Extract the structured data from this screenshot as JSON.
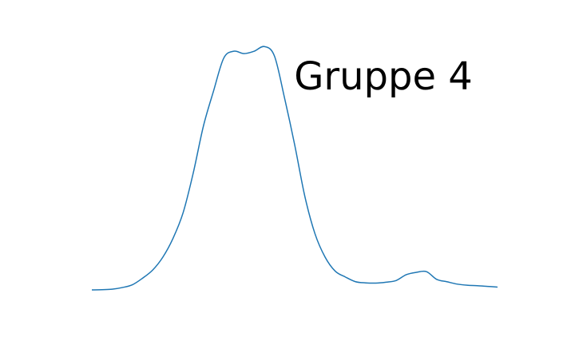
{
  "chart_data": {
    "type": "line",
    "title": "Gruppe 4",
    "xlabel": "",
    "ylabel": "",
    "grid": false,
    "axes_visible": false,
    "xlim": [
      0,
      100
    ],
    "ylim": [
      0,
      1
    ],
    "series": [
      {
        "color": "#1f77b4",
        "x": [
          0,
          2.5,
          5,
          7.5,
          10,
          12.5,
          15,
          17.5,
          20,
          22.5,
          25,
          27.5,
          30,
          32.5,
          35,
          37.5,
          40,
          42.5,
          45,
          47.5,
          50,
          52.5,
          55,
          57.5,
          60,
          62.5,
          65,
          67.5,
          70,
          72.5,
          75,
          77.5,
          80,
          82.5,
          85,
          87.5,
          90,
          92.5,
          95,
          97.5,
          100
        ],
        "y": [
          0.0,
          0.001,
          0.003,
          0.01,
          0.022,
          0.05,
          0.085,
          0.14,
          0.22,
          0.33,
          0.5,
          0.7,
          0.85,
          0.99,
          1.02,
          1.01,
          1.02,
          1.04,
          1.0,
          0.82,
          0.62,
          0.4,
          0.24,
          0.14,
          0.08,
          0.055,
          0.035,
          0.03,
          0.029,
          0.033,
          0.04,
          0.065,
          0.075,
          0.078,
          0.045,
          0.035,
          0.025,
          0.02,
          0.018,
          0.015,
          0.012
        ]
      }
    ]
  }
}
